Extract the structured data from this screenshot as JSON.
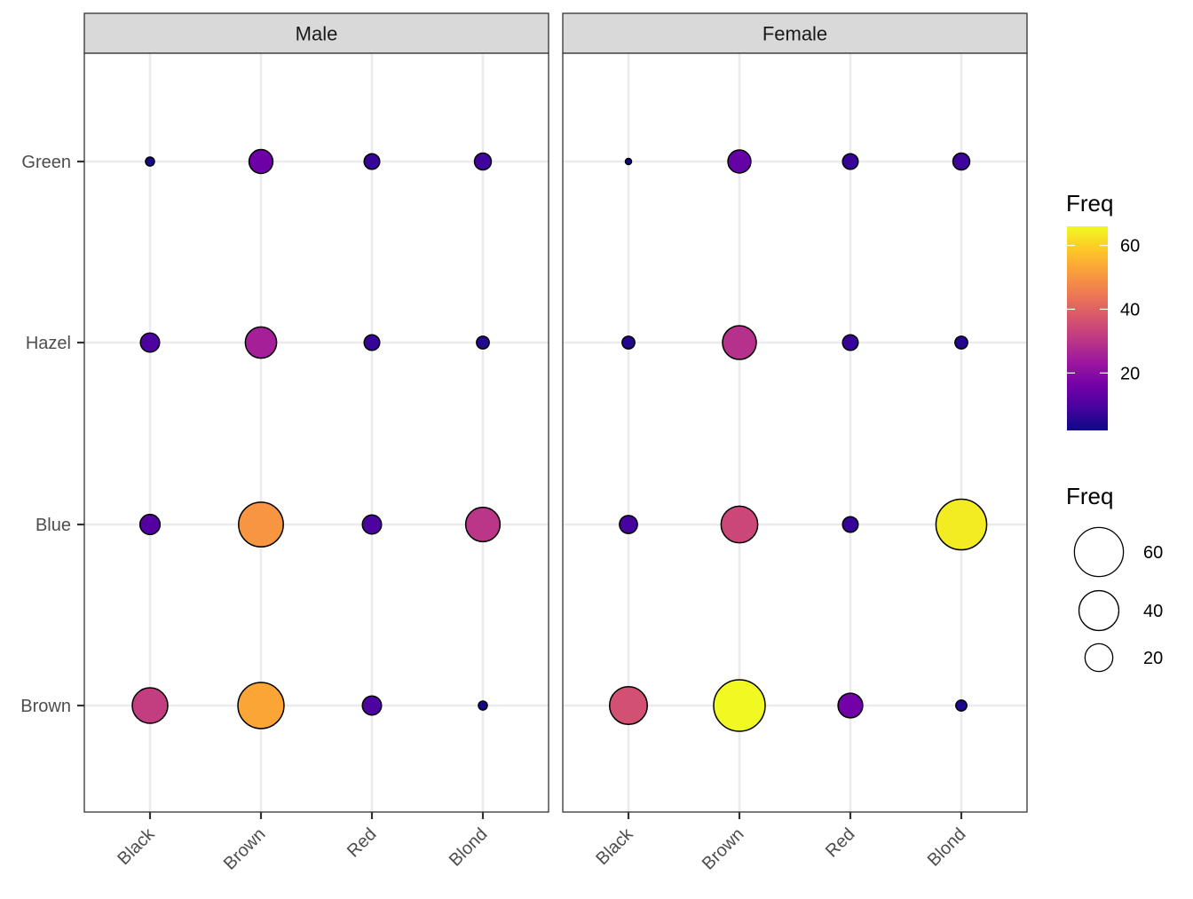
{
  "chart_data": {
    "type": "scatter",
    "encoding": "bubble",
    "facets": [
      "Male",
      "Female"
    ],
    "x_categories": [
      "Black",
      "Brown",
      "Red",
      "Blond"
    ],
    "y_categories": [
      "Brown",
      "Blue",
      "Hazel",
      "Green"
    ],
    "data": [
      {
        "facet": "Male",
        "x": "Black",
        "y": "Brown",
        "freq": 32
      },
      {
        "facet": "Male",
        "x": "Brown",
        "y": "Brown",
        "freq": 53
      },
      {
        "facet": "Male",
        "x": "Red",
        "y": "Brown",
        "freq": 10
      },
      {
        "facet": "Male",
        "x": "Blond",
        "y": "Brown",
        "freq": 3
      },
      {
        "facet": "Male",
        "x": "Black",
        "y": "Blue",
        "freq": 11
      },
      {
        "facet": "Male",
        "x": "Brown",
        "y": "Blue",
        "freq": 50
      },
      {
        "facet": "Male",
        "x": "Red",
        "y": "Blue",
        "freq": 10
      },
      {
        "facet": "Male",
        "x": "Blond",
        "y": "Blue",
        "freq": 30
      },
      {
        "facet": "Male",
        "x": "Black",
        "y": "Hazel",
        "freq": 10
      },
      {
        "facet": "Male",
        "x": "Brown",
        "y": "Hazel",
        "freq": 25
      },
      {
        "facet": "Male",
        "x": "Red",
        "y": "Hazel",
        "freq": 7
      },
      {
        "facet": "Male",
        "x": "Blond",
        "y": "Hazel",
        "freq": 5
      },
      {
        "facet": "Male",
        "x": "Black",
        "y": "Green",
        "freq": 3
      },
      {
        "facet": "Male",
        "x": "Brown",
        "y": "Green",
        "freq": 15
      },
      {
        "facet": "Male",
        "x": "Red",
        "y": "Green",
        "freq": 7
      },
      {
        "facet": "Male",
        "x": "Blond",
        "y": "Green",
        "freq": 8
      },
      {
        "facet": "Female",
        "x": "Black",
        "y": "Brown",
        "freq": 36
      },
      {
        "facet": "Female",
        "x": "Brown",
        "y": "Brown",
        "freq": 66
      },
      {
        "facet": "Female",
        "x": "Red",
        "y": "Brown",
        "freq": 16
      },
      {
        "facet": "Female",
        "x": "Blond",
        "y": "Brown",
        "freq": 4
      },
      {
        "facet": "Female",
        "x": "Black",
        "y": "Blue",
        "freq": 9
      },
      {
        "facet": "Female",
        "x": "Brown",
        "y": "Blue",
        "freq": 34
      },
      {
        "facet": "Female",
        "x": "Red",
        "y": "Blue",
        "freq": 7
      },
      {
        "facet": "Female",
        "x": "Blond",
        "y": "Blue",
        "freq": 64
      },
      {
        "facet": "Female",
        "x": "Black",
        "y": "Hazel",
        "freq": 5
      },
      {
        "facet": "Female",
        "x": "Brown",
        "y": "Hazel",
        "freq": 29
      },
      {
        "facet": "Female",
        "x": "Red",
        "y": "Hazel",
        "freq": 7
      },
      {
        "facet": "Female",
        "x": "Blond",
        "y": "Hazel",
        "freq": 5
      },
      {
        "facet": "Female",
        "x": "Black",
        "y": "Green",
        "freq": 2
      },
      {
        "facet": "Female",
        "x": "Brown",
        "y": "Green",
        "freq": 14
      },
      {
        "facet": "Female",
        "x": "Red",
        "y": "Green",
        "freq": 7
      },
      {
        "facet": "Female",
        "x": "Blond",
        "y": "Green",
        "freq": 8
      }
    ],
    "freq_range": [
      2,
      66
    ],
    "color_scale": {
      "name": "plasma",
      "stops": [
        "#0d0887",
        "#47039f",
        "#7301a8",
        "#9c179e",
        "#bd3786",
        "#d8576b",
        "#ed7953",
        "#fa9e3b",
        "#fdc926",
        "#f0f921"
      ]
    },
    "legends": [
      {
        "kind": "colorbar",
        "title": "Freq",
        "breaks": [
          20,
          40,
          60
        ]
      },
      {
        "kind": "size",
        "title": "Freq",
        "breaks": [
          60,
          40,
          20
        ]
      }
    ],
    "grid": true,
    "xlabel": "",
    "ylabel": "",
    "legend_position": "right"
  }
}
